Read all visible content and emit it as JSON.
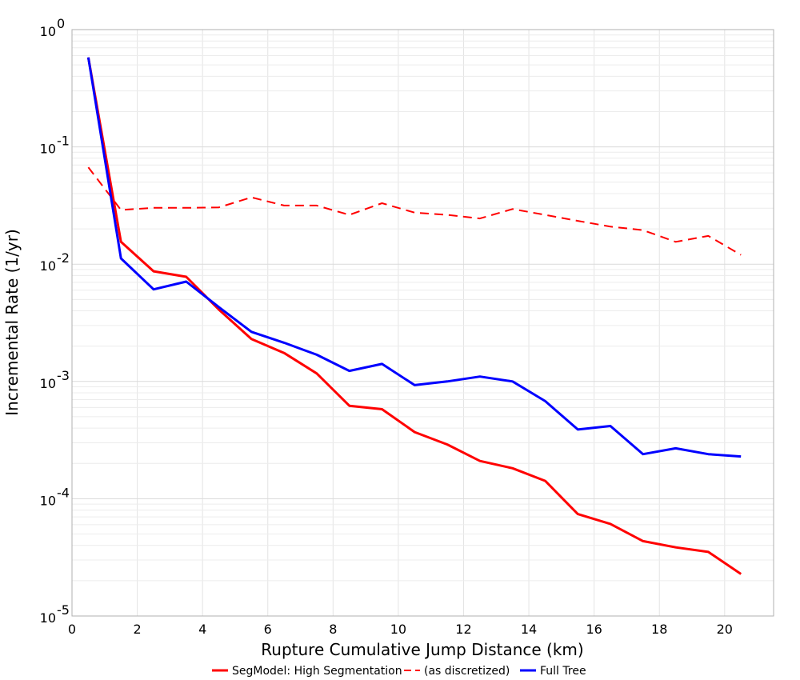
{
  "chart_data": {
    "type": "line",
    "title": "",
    "xlabel": "Rupture Cumulative Jump Distance (km)",
    "ylabel": "Incremental Rate (1/yr)",
    "x_scale": "linear",
    "y_scale": "log",
    "xlim": [
      0,
      21.5
    ],
    "ylim": [
      1e-05,
      1
    ],
    "x_ticks": [
      0,
      2,
      4,
      6,
      8,
      10,
      12,
      14,
      16,
      18,
      20
    ],
    "x_tick_labels": [
      "0",
      "2",
      "4",
      "6",
      "8",
      "10",
      "12",
      "14",
      "16",
      "18",
      "20"
    ],
    "y_ticks": [
      {
        "value": 1,
        "base": "10",
        "exp": "0"
      },
      {
        "value": 0.1,
        "base": "10",
        "exp": "-1"
      },
      {
        "value": 0.01,
        "base": "10",
        "exp": "-2"
      },
      {
        "value": 0.001,
        "base": "10",
        "exp": "-3"
      },
      {
        "value": 0.0001,
        "base": "10",
        "exp": "-4"
      },
      {
        "value": 1e-05,
        "base": "10",
        "exp": "-5"
      }
    ],
    "grid": true,
    "legend_position": "bottom",
    "x": [
      0.5,
      1.5,
      2.5,
      3.5,
      4.5,
      5.5,
      6.5,
      7.5,
      8.5,
      9.5,
      10.5,
      11.5,
      12.5,
      13.5,
      14.5,
      15.5,
      16.5,
      17.5,
      18.5,
      19.5,
      20.5
    ],
    "series": [
      {
        "name": "SegModel: High Segmentation",
        "color": "#ff0000",
        "dash": "solid",
        "values": [
          0.58,
          0.0155,
          0.0087,
          0.0078,
          0.0041,
          0.0023,
          0.00175,
          0.00117,
          0.00062,
          0.00058,
          0.00037,
          0.00029,
          0.00021,
          0.000182,
          0.000142,
          7.4e-05,
          6.1e-05,
          4.35e-05,
          3.85e-05,
          3.52e-05,
          2.28e-05
        ]
      },
      {
        "name": "(as discretized)",
        "color": "#ff0000",
        "dash": "dashed",
        "values": [
          0.067,
          0.029,
          0.0302,
          0.0302,
          0.0305,
          0.0371,
          0.0316,
          0.0316,
          0.0263,
          0.0331,
          0.0275,
          0.0263,
          0.0245,
          0.0295,
          0.0263,
          0.0234,
          0.0209,
          0.0195,
          0.0155,
          0.0174,
          0.012
        ]
      },
      {
        "name": "Full Tree",
        "color": "#0000ff",
        "dash": "solid",
        "values": [
          0.58,
          0.0112,
          0.0061,
          0.0071,
          0.0043,
          0.00265,
          0.00214,
          0.00169,
          0.00123,
          0.00141,
          0.00093,
          0.001,
          0.0011,
          0.001,
          0.00068,
          0.000389,
          0.000417,
          0.00024,
          0.000269,
          0.00024,
          0.000229
        ]
      }
    ]
  }
}
